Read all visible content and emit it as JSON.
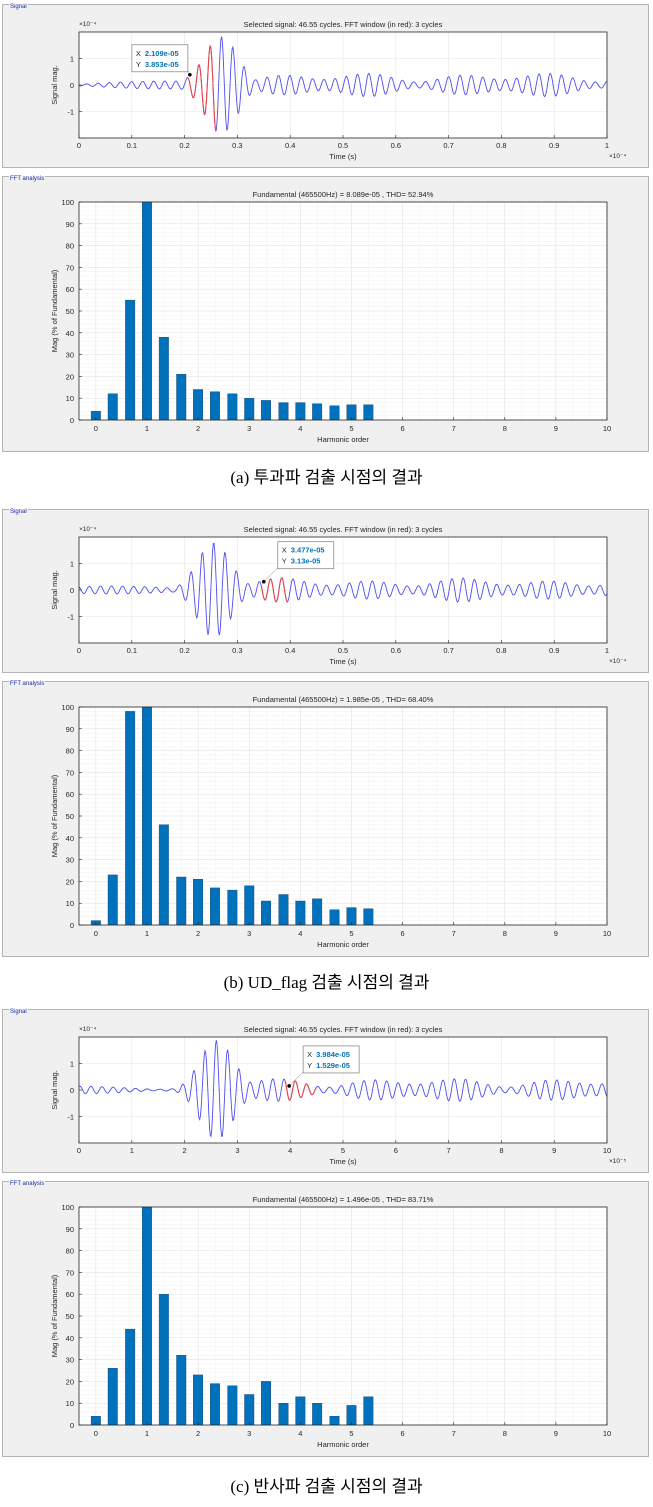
{
  "colors": {
    "bar": "#0072bd",
    "signal": "#4e4ef2",
    "window": "#e84848",
    "datatip_value": "#0072bd",
    "panel_title": "#1f2ea8"
  },
  "panels": [
    {
      "caption": "(a) 투과파 검출 시점의 결과",
      "signal_box_title": "Signal",
      "fft_box_title": "FFT analysis",
      "signal_chart": {
        "type": "line",
        "title": "Selected signal: 46.55 cycles. FFT window (in red): 3 cycles",
        "xlabel": "Time (s)",
        "ylabel": "Signal mag.",
        "x_ticks": [
          "0",
          "0.1",
          "0.2",
          "0.3",
          "0.4",
          "0.5",
          "0.6",
          "0.7",
          "0.8",
          "0.9",
          "1"
        ],
        "y_ticks": [
          "-1",
          "0",
          "1"
        ],
        "x_multiplier": "×10⁻⁴",
        "y_multiplier": "×10⁻⁴",
        "xlim": [
          0,
          1
        ],
        "ylim": [
          -2,
          2
        ],
        "burst_center": 0.27,
        "window": [
          0.205,
          0.26
        ],
        "datatip": {
          "x_label": "X",
          "x_value": "2.109e-05",
          "y_label": "Y",
          "y_value": "3.853e-05",
          "x": 0.21,
          "y": 0.385
        }
      },
      "fft_chart": {
        "type": "bar",
        "title": "Fundamental (465500Hz) = 8.089e-05 , THD= 52.94%",
        "xlabel": "Harmonic order",
        "ylabel": "Mag (% of Fundamental)",
        "x_ticks": [
          "0",
          "1",
          "2",
          "3",
          "4",
          "5",
          "6",
          "7",
          "8",
          "9",
          "10"
        ],
        "y_ticks": [
          "0",
          "10",
          "20",
          "30",
          "40",
          "50",
          "60",
          "70",
          "80",
          "90",
          "100"
        ],
        "xlim": [
          -0.33,
          10
        ],
        "ylim": [
          0,
          100
        ],
        "x": [
          0,
          0.33,
          0.67,
          1,
          1.33,
          1.67,
          2,
          2.33,
          2.67,
          3,
          3.33,
          3.67,
          4,
          4.33,
          4.67,
          5,
          5.33
        ],
        "values": [
          4,
          12,
          55,
          100,
          38,
          21,
          14,
          13,
          12,
          10,
          9,
          8,
          8,
          7.5,
          6.5,
          7,
          7
        ]
      }
    },
    {
      "caption": "(b) UD_flag 검출 시점의 결과",
      "signal_box_title": "Signal",
      "fft_box_title": "FFT analysis",
      "signal_chart": {
        "type": "line",
        "title": "Selected signal: 46.55 cycles. FFT window (in red): 3 cycles",
        "xlabel": "Time (s)",
        "ylabel": "Signal mag.",
        "x_ticks": [
          "0",
          "0.1",
          "0.2",
          "0.3",
          "0.4",
          "0.5",
          "0.6",
          "0.7",
          "0.8",
          "0.9",
          "1"
        ],
        "y_ticks": [
          "-1",
          "0",
          "1"
        ],
        "x_multiplier": "×10⁻⁴",
        "y_multiplier": "×10⁻⁴",
        "xlim": [
          0,
          1
        ],
        "ylim": [
          -2,
          2
        ],
        "burst_center": 0.255,
        "window": [
          0.345,
          0.395
        ],
        "datatip": {
          "x_label": "X",
          "x_value": "3.477e-05",
          "y_label": "Y",
          "y_value": "3.13e-05",
          "x": 0.35,
          "y": 0.313
        }
      },
      "fft_chart": {
        "type": "bar",
        "title": "Fundamental (465500Hz) = 1.985e-05 , THD= 68.40%",
        "xlabel": "Harmonic order",
        "ylabel": "Mag (% of Fundamental)",
        "x_ticks": [
          "0",
          "1",
          "2",
          "3",
          "4",
          "5",
          "6",
          "7",
          "8",
          "9",
          "10"
        ],
        "y_ticks": [
          "0",
          "10",
          "20",
          "30",
          "40",
          "50",
          "60",
          "70",
          "80",
          "90",
          "100"
        ],
        "xlim": [
          -0.33,
          10
        ],
        "ylim": [
          0,
          100
        ],
        "x": [
          0,
          0.33,
          0.67,
          1,
          1.33,
          1.67,
          2,
          2.33,
          2.67,
          3,
          3.33,
          3.67,
          4,
          4.33,
          4.67,
          5,
          5.33
        ],
        "values": [
          2,
          23,
          98,
          100,
          46,
          22,
          21,
          17,
          16,
          18,
          11,
          14,
          11,
          12,
          7,
          8,
          7.5
        ]
      }
    },
    {
      "caption": "(c) 반사파 검출 시점의 결과",
      "signal_box_title": "Signal",
      "fft_box_title": "FFT analysis",
      "signal_chart": {
        "type": "line",
        "title": "Selected signal: 46.55 cycles. FFT window (in red): 3 cycles",
        "xlabel": "Time (s)",
        "ylabel": "Signal mag.",
        "x_ticks": [
          "0",
          "1",
          "2",
          "3",
          "4",
          "5",
          "6",
          "7",
          "8",
          "9",
          "10"
        ],
        "y_ticks": [
          "-1",
          "0",
          "1"
        ],
        "x_multiplier": "×10⁻⁵",
        "y_multiplier": "×10⁻⁴",
        "xlim": [
          0,
          10
        ],
        "ylim": [
          -2,
          2
        ],
        "burst_center": 2.6,
        "window": [
          3.9,
          4.5
        ],
        "datatip": {
          "x_label": "X",
          "x_value": "3.984e-05",
          "y_label": "Y",
          "y_value": "1.529e-05",
          "x": 3.98,
          "y": 0.153
        }
      },
      "fft_chart": {
        "type": "bar",
        "title": "Fundamental (465500Hz) = 1.496e-05 , THD= 83.71%",
        "xlabel": "Harmonic order",
        "ylabel": "Mag (% of Fundamental)",
        "x_ticks": [
          "0",
          "1",
          "2",
          "3",
          "4",
          "5",
          "6",
          "7",
          "8",
          "9",
          "10"
        ],
        "y_ticks": [
          "0",
          "10",
          "20",
          "30",
          "40",
          "50",
          "60",
          "70",
          "80",
          "90",
          "100"
        ],
        "xlim": [
          -0.33,
          10
        ],
        "ylim": [
          0,
          100
        ],
        "x": [
          0,
          0.33,
          0.67,
          1,
          1.33,
          1.67,
          2,
          2.33,
          2.67,
          3,
          3.33,
          3.67,
          4,
          4.33,
          4.67,
          5,
          5.33
        ],
        "values": [
          4,
          26,
          44,
          100,
          60,
          32,
          23,
          19,
          18,
          14,
          20,
          10,
          13,
          10,
          4,
          9,
          13
        ]
      }
    }
  ]
}
